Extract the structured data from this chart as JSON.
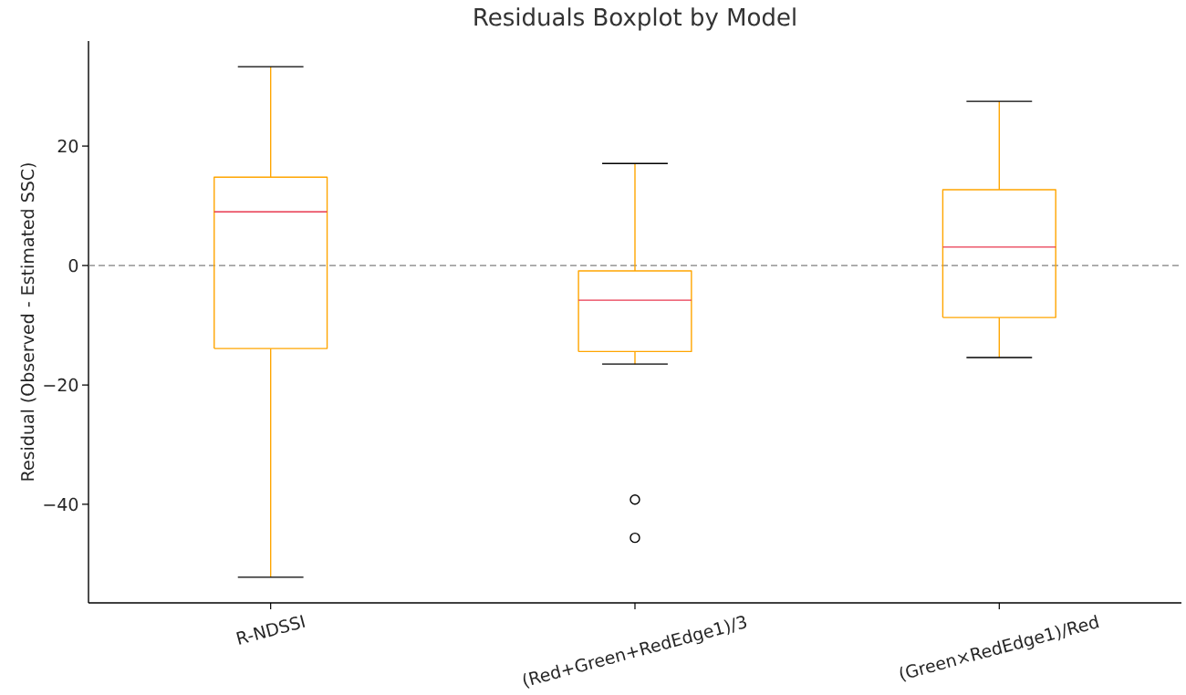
{
  "chart_data": {
    "type": "box",
    "title": "Residuals Boxplot by Model",
    "ylabel": "Residual (Observed - Estimated SSC)",
    "categories": [
      "R-NDSSI",
      "(Red+Green+RedEdge1)/3",
      "(Green×RedEdge1)/Red"
    ],
    "series": [
      {
        "color": "#ffa500",
        "boxes": [
          {
            "low": -52.2,
            "q1": -13.9,
            "median": 9.0,
            "q3": 14.8,
            "high": 33.3
          },
          {
            "low": -16.5,
            "q1": -14.4,
            "median": -5.8,
            "q3": -0.9,
            "high": 17.1,
            "outliers": [
              -39.2,
              -45.6
            ]
          },
          {
            "low": -15.4,
            "q1": -8.7,
            "median": 3.1,
            "q3": 12.7,
            "high": 27.5
          }
        ]
      }
    ],
    "ylim": [
      -56.5,
      37.6
    ],
    "yticks": [
      {
        "value": -40,
        "label": "−40"
      },
      {
        "value": -20,
        "label": "−20"
      },
      0,
      20
    ],
    "ref_lines": [
      {
        "axis": "y",
        "value": 0,
        "color": "#808080",
        "line_style": "dashed"
      }
    ]
  }
}
